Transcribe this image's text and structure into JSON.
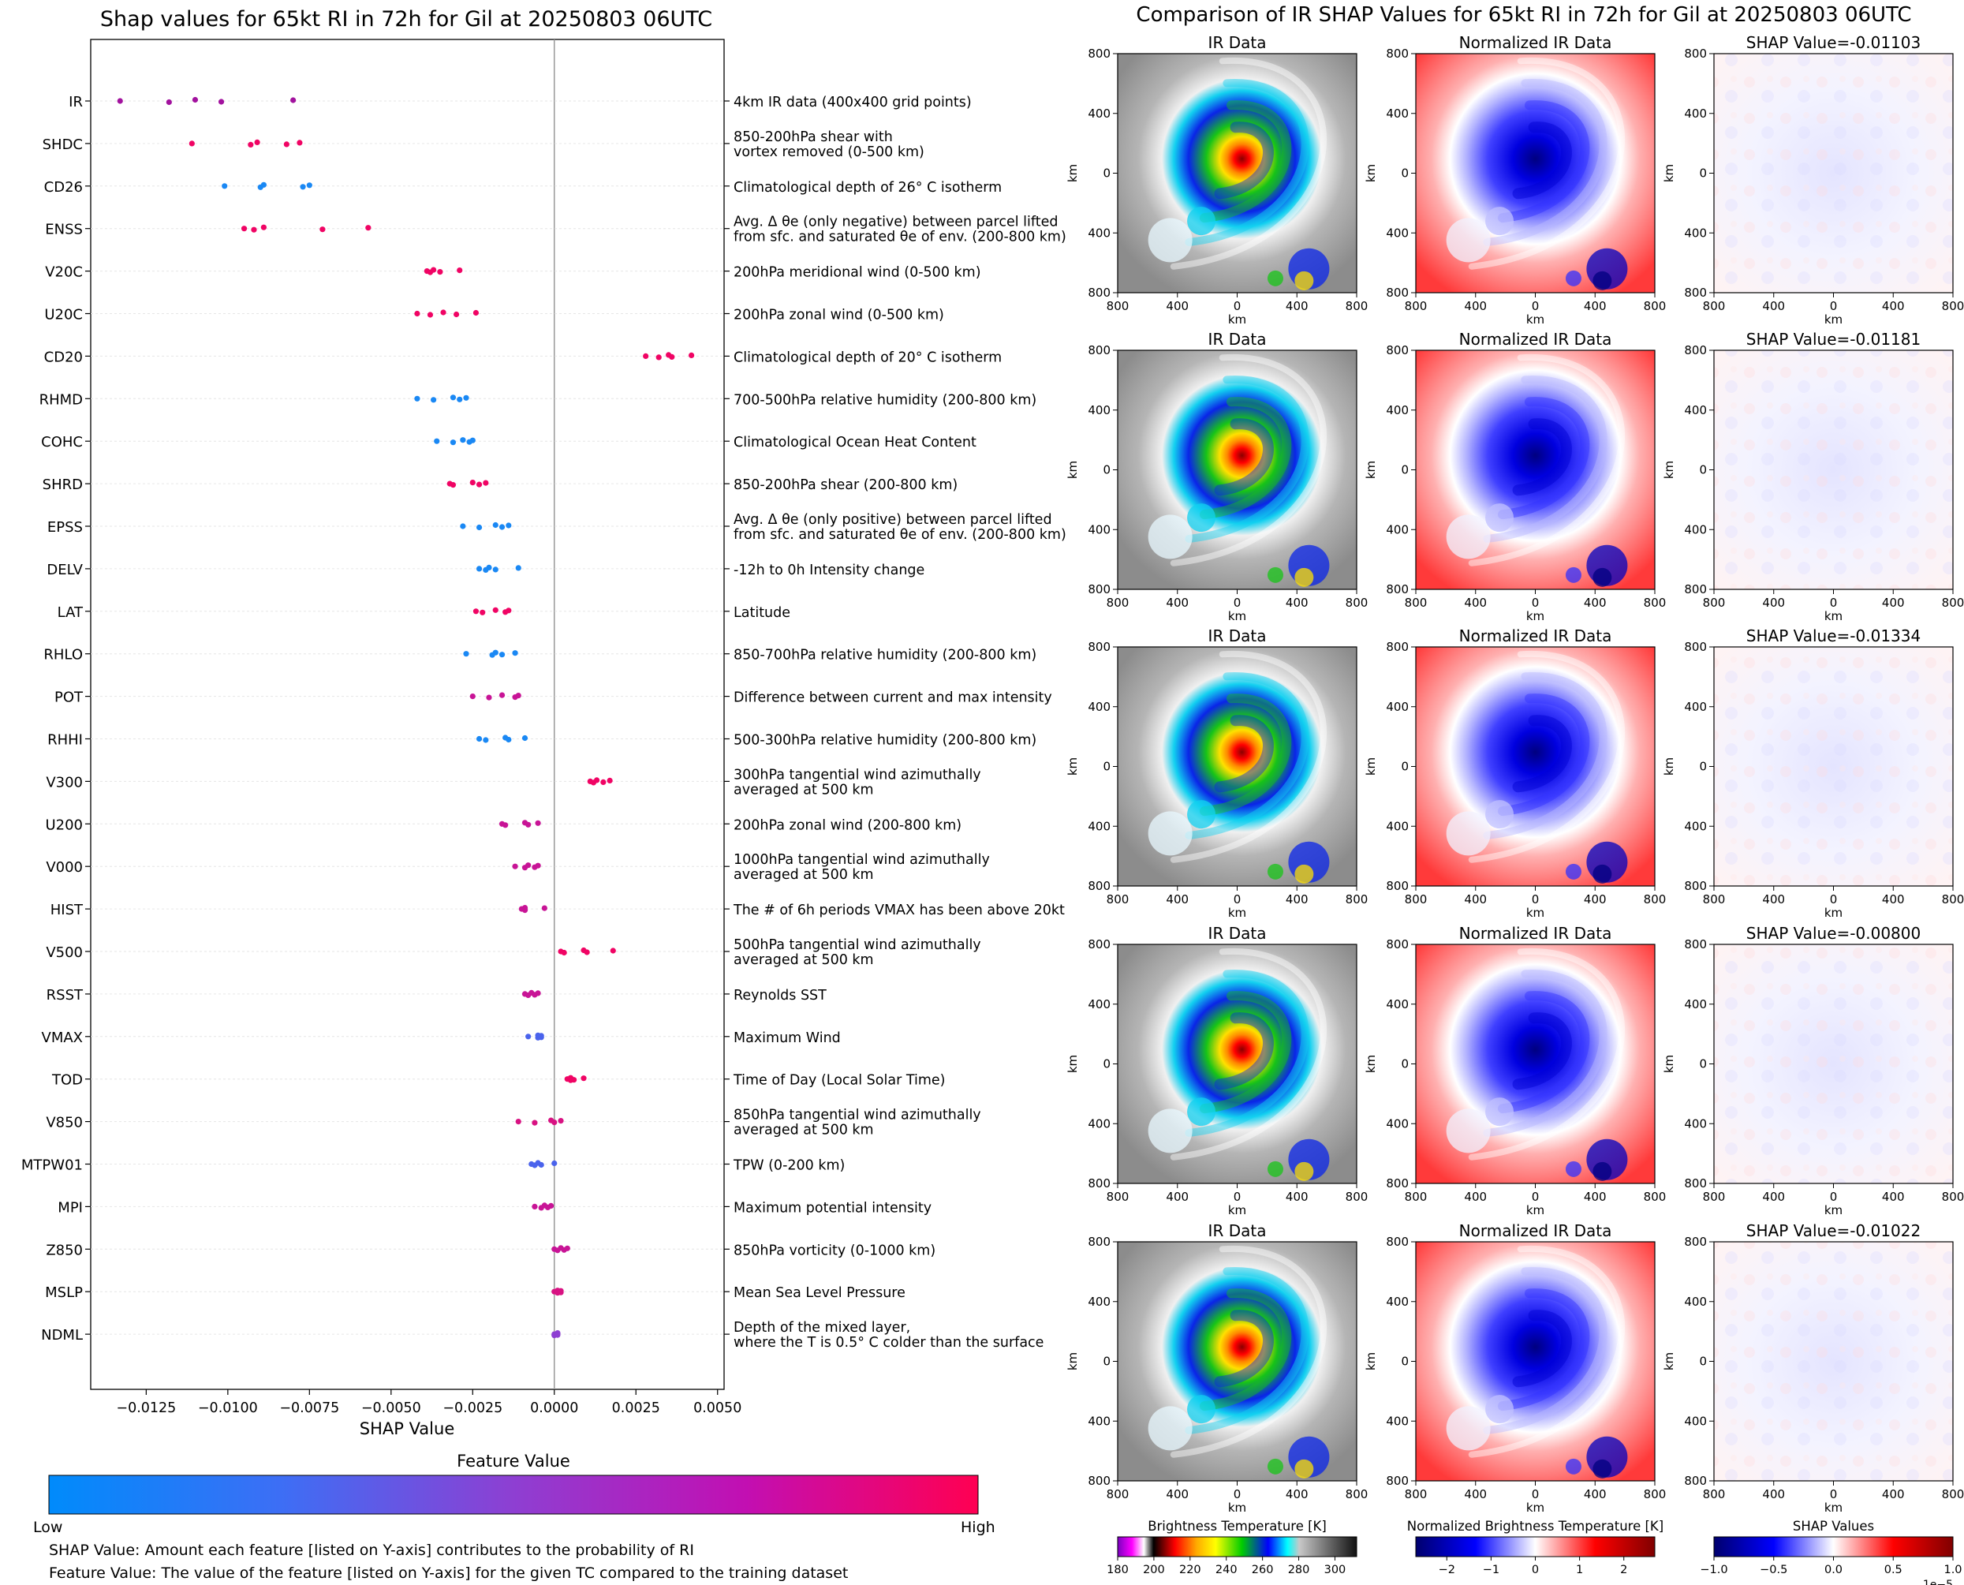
{
  "left_title": "Shap values for 65kt RI in 72h for Gil at 20250803 06UTC",
  "right_title": "Comparison of IR SHAP Values for 65kt RI in 72h for Gil at 20250803 06UTC",
  "colorbar": {
    "title": "Feature Value",
    "low_label": "Low",
    "high_label": "High",
    "colors": [
      "#008bfb",
      "#3d6ef5",
      "#8e3fd2",
      "#c20fb2",
      "#ff0052"
    ]
  },
  "notes": [
    "SHAP Value: Amount each feature [listed on Y-axis] contributes to the probability of RI",
    "Feature Value: The value of the feature [listed on Y-axis] for the given TC compared to the training dataset"
  ],
  "chart_data": [
    {
      "type": "scatter",
      "title": "Shap values for 65kt RI in 72h for Gil at 20250803 06UTC",
      "xlabel": "SHAP Value",
      "xlim": [
        -0.0142,
        0.0052
      ],
      "xticks": [
        -0.0125,
        -0.01,
        -0.0075,
        -0.005,
        -0.0025,
        0.0,
        0.0025,
        0.005
      ],
      "xtick_labels": [
        "−0.0125",
        "−0.0100",
        "−0.0075",
        "−0.0050",
        "−0.0025",
        "0.0000",
        "0.0025",
        "0.0050"
      ],
      "features": [
        {
          "name": "IR",
          "desc": [
            "4km IR data (400x400 grid points)"
          ],
          "color": "#a2129e",
          "values": [
            -0.0133,
            -0.0118,
            -0.011,
            -0.0102,
            -0.008
          ]
        },
        {
          "name": "SHDC",
          "desc": [
            "850-200hPa shear with",
            "vortex removed (0-500 km)"
          ],
          "color": "#f00464",
          "values": [
            -0.0111,
            -0.0093,
            -0.0091,
            -0.0082,
            -0.0078
          ]
        },
        {
          "name": "CD26",
          "desc": [
            "Climatological depth of 26° C isotherm"
          ],
          "color": "#1a88f4",
          "values": [
            -0.0101,
            -0.009,
            -0.0089,
            -0.0077,
            -0.0075
          ]
        },
        {
          "name": "ENSS",
          "desc": [
            "Avg. Δ θe (only negative) between parcel lifted",
            "from sfc. and saturated θe of env. (200-800 km)"
          ],
          "color": "#f00464",
          "values": [
            -0.0095,
            -0.0092,
            -0.0089,
            -0.0071,
            -0.0057
          ]
        },
        {
          "name": "V20C",
          "desc": [
            "200hPa meridional wind (0-500 km)"
          ],
          "color": "#f00464",
          "values": [
            -0.0039,
            -0.0038,
            -0.0037,
            -0.0035,
            -0.0029
          ]
        },
        {
          "name": "U20C",
          "desc": [
            "200hPa zonal wind (0-500 km)"
          ],
          "color": "#f00464",
          "values": [
            -0.0042,
            -0.0038,
            -0.0034,
            -0.003,
            -0.0024
          ]
        },
        {
          "name": "CD20",
          "desc": [
            "Climatological depth of 20° C isotherm"
          ],
          "color": "#f00464",
          "values": [
            0.0028,
            0.0032,
            0.0035,
            0.0036,
            0.0042
          ]
        },
        {
          "name": "RHMD",
          "desc": [
            "700-500hPa relative humidity (200-800 km)"
          ],
          "color": "#1a88f4",
          "values": [
            -0.0042,
            -0.0037,
            -0.0031,
            -0.0029,
            -0.0027
          ]
        },
        {
          "name": "COHC",
          "desc": [
            "Climatological Ocean Heat Content"
          ],
          "color": "#1a88f4",
          "values": [
            -0.0036,
            -0.0031,
            -0.0028,
            -0.0026,
            -0.0025
          ]
        },
        {
          "name": "SHRD",
          "desc": [
            "850-200hPa shear (200-800 km)"
          ],
          "color": "#f00464",
          "values": [
            -0.0032,
            -0.0031,
            -0.0025,
            -0.0023,
            -0.0021
          ]
        },
        {
          "name": "EPSS",
          "desc": [
            "Avg. Δ θe (only positive) between parcel lifted",
            "from sfc. and saturated θe of env. (200-800 km)"
          ],
          "color": "#1a88f4",
          "values": [
            -0.0028,
            -0.0023,
            -0.0018,
            -0.0016,
            -0.0014
          ]
        },
        {
          "name": "DELV",
          "desc": [
            "-12h to 0h Intensity change"
          ],
          "color": "#1a88f4",
          "values": [
            -0.0023,
            -0.0021,
            -0.002,
            -0.0018,
            -0.0011
          ]
        },
        {
          "name": "LAT",
          "desc": [
            "Latitude"
          ],
          "color": "#f00464",
          "values": [
            -0.0024,
            -0.0022,
            -0.0018,
            -0.0015,
            -0.0014
          ]
        },
        {
          "name": "RHLO",
          "desc": [
            "850-700hPa relative humidity (200-800 km)"
          ],
          "color": "#1a88f4",
          "values": [
            -0.0027,
            -0.0019,
            -0.0018,
            -0.0016,
            -0.0012
          ]
        },
        {
          "name": "POT",
          "desc": [
            "Difference between current and max intensity"
          ],
          "color": "#c81496",
          "values": [
            -0.0025,
            -0.002,
            -0.0016,
            -0.0012,
            -0.0011
          ]
        },
        {
          "name": "RHHI",
          "desc": [
            "500-300hPa relative humidity (200-800 km)"
          ],
          "color": "#1a88f4",
          "values": [
            -0.0023,
            -0.0021,
            -0.0015,
            -0.0014,
            -0.0009
          ]
        },
        {
          "name": "V300",
          "desc": [
            "300hPa tangential wind azimuthally",
            "averaged at 500 km"
          ],
          "color": "#f00464",
          "values": [
            0.0011,
            0.0012,
            0.0013,
            0.0015,
            0.0017
          ]
        },
        {
          "name": "U200",
          "desc": [
            "200hPa zonal wind (200-800 km)"
          ],
          "color": "#c81496",
          "values": [
            -0.0016,
            -0.0015,
            -0.0009,
            -0.0008,
            -0.0005
          ]
        },
        {
          "name": "V000",
          "desc": [
            "1000hPa tangential wind azimuthally",
            "averaged at 500 km"
          ],
          "color": "#c81496",
          "values": [
            -0.0012,
            -0.0009,
            -0.0008,
            -0.0006,
            -0.0005
          ]
        },
        {
          "name": "HIST",
          "desc": [
            "The # of 6h periods VMAX has been above 20kt"
          ],
          "color": "#c81496",
          "values": [
            -0.001,
            -0.0009,
            -0.0009,
            -0.0009,
            -0.0003
          ]
        },
        {
          "name": "V500",
          "desc": [
            "500hPa tangential wind azimuthally",
            "averaged at 500 km"
          ],
          "color": "#f00464",
          "values": [
            0.0002,
            0.0003,
            0.0009,
            0.001,
            0.0018
          ]
        },
        {
          "name": "RSST",
          "desc": [
            "Reynolds SST"
          ],
          "color": "#c81496",
          "values": [
            -0.0009,
            -0.0008,
            -0.0007,
            -0.0006,
            -0.0005
          ]
        },
        {
          "name": "VMAX",
          "desc": [
            "Maximum Wind"
          ],
          "color": "#4a63ec",
          "values": [
            -0.0008,
            -0.0005,
            -0.0005,
            -0.0004,
            -0.0004
          ]
        },
        {
          "name": "TOD",
          "desc": [
            "Time of Day (Local Solar Time)"
          ],
          "color": "#f00464",
          "values": [
            0.0004,
            0.0005,
            0.0005,
            0.0006,
            0.0009
          ]
        },
        {
          "name": "V850",
          "desc": [
            "850hPa tangential wind azimuthally",
            "averaged at 500 km"
          ],
          "color": "#d81282",
          "values": [
            -0.0011,
            -0.0006,
            -0.0001,
            0.0,
            0.0002
          ]
        },
        {
          "name": "MTPW01",
          "desc": [
            "TPW (0-200 km)"
          ],
          "color": "#4a63ec",
          "values": [
            -0.0007,
            -0.0006,
            -0.0005,
            -0.0004,
            0.0
          ]
        },
        {
          "name": "MPI",
          "desc": [
            "Maximum potential intensity"
          ],
          "color": "#c81496",
          "values": [
            -0.0006,
            -0.0004,
            -0.0003,
            -0.0002,
            -0.0001
          ]
        },
        {
          "name": "Z850",
          "desc": [
            "850hPa vorticity (0-1000 km)"
          ],
          "color": "#c81496",
          "values": [
            0.0,
            0.0001,
            0.0002,
            0.0003,
            0.0004
          ]
        },
        {
          "name": "MSLP",
          "desc": [
            "Mean Sea Level Pressure"
          ],
          "color": "#d81282",
          "values": [
            0.0,
            0.0001,
            0.0001,
            0.0002,
            0.0002
          ]
        },
        {
          "name": "NDML",
          "desc": [
            "Depth of the mixed layer,",
            "where the T is 0.5° C colder than the surface"
          ],
          "color": "#8e3fd2",
          "values": [
            0.0,
            0.0,
            0.0001,
            0.0001,
            0.0001
          ]
        }
      ]
    },
    {
      "type": "heatmap",
      "panel_titles": [
        "IR Data",
        "Normalized IR Data"
      ],
      "shap_titles": [
        "SHAP Value=-0.01103",
        "SHAP Value=-0.01181",
        "SHAP Value=-0.01334",
        "SHAP Value=-0.00800",
        "SHAP Value=-0.01022"
      ],
      "axis_label": "km",
      "tick_labels": [
        "800",
        "400",
        "0",
        "400",
        "800"
      ],
      "colorbars": [
        {
          "title": "Brightness Temperature [K]",
          "ticks": [
            "180",
            "200",
            "220",
            "240",
            "260",
            "280",
            "300"
          ],
          "range": [
            180,
            312
          ],
          "tick_values": [
            180,
            200,
            220,
            240,
            260,
            280,
            300
          ],
          "stops": [
            [
              "0",
              "#7a00c0"
            ],
            [
              "0.06",
              "#ff00ff"
            ],
            [
              "0.11",
              "#ffffff"
            ],
            [
              "0.15",
              "#000000"
            ],
            [
              "0.24",
              "#ff0000"
            ],
            [
              "0.33",
              "#ffaa00"
            ],
            [
              "0.41",
              "#ffff00"
            ],
            [
              "0.52",
              "#00cc00"
            ],
            [
              "0.63",
              "#0000ff"
            ],
            [
              "0.71",
              "#00ffff"
            ],
            [
              "0.76",
              "#c8c8c8"
            ],
            [
              "1",
              "#111111"
            ]
          ]
        },
        {
          "title": "Normalized Brightness Temperature [K]",
          "ticks": [
            "−2",
            "−1",
            "0",
            "1",
            "2"
          ],
          "range": [
            -2.7,
            2.7
          ],
          "tick_values": [
            -2,
            -1,
            0,
            1,
            2
          ],
          "stops": [
            [
              "0",
              "#00006e"
            ],
            [
              "0.25",
              "#0000ff"
            ],
            [
              "0.5",
              "#ffffff"
            ],
            [
              "0.75",
              "#ff0000"
            ],
            [
              "1",
              "#800000"
            ]
          ]
        },
        {
          "title": "SHAP Values",
          "ticks": [
            "−1.0",
            "−0.5",
            "0.0",
            "0.5",
            "1.0"
          ],
          "range": [
            -1.0,
            1.0
          ],
          "tick_values": [
            -1.0,
            -0.5,
            0.0,
            0.5,
            1.0
          ],
          "exponent": "1e−5",
          "stops": [
            [
              "0",
              "#00006e"
            ],
            [
              "0.25",
              "#0000ff"
            ],
            [
              "0.5",
              "#ffffff"
            ],
            [
              "0.75",
              "#ff0000"
            ],
            [
              "1",
              "#800000"
            ]
          ]
        }
      ]
    }
  ]
}
